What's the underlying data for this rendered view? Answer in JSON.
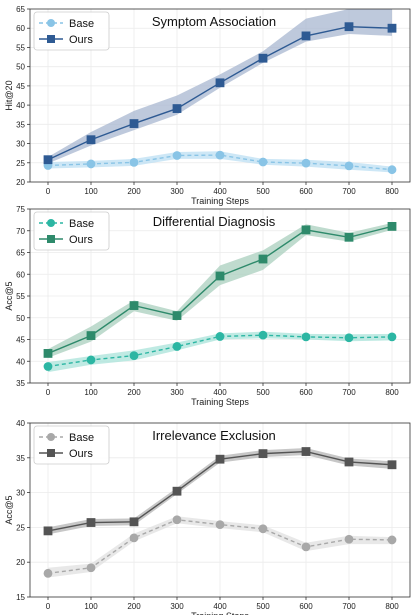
{
  "chart_data": [
    {
      "type": "line",
      "title": "Symptom Association",
      "xlabel": "Training Steps",
      "ylabel": "Hit@20",
      "x": [
        0,
        100,
        200,
        300,
        400,
        500,
        600,
        700,
        800
      ],
      "xticks": [
        "0",
        "100",
        "200",
        "300",
        "400",
        "500",
        "600",
        "700",
        "800"
      ],
      "ylim": [
        20,
        65
      ],
      "yticks": [
        "20",
        "25",
        "30",
        "35",
        "40",
        "45",
        "50",
        "55",
        "60",
        "65"
      ],
      "grid": true,
      "legend": "top-left",
      "series": [
        {
          "name": "Base",
          "marker": "circle",
          "dashed": true,
          "color": "#89c4e6",
          "band_color": "#bcdff3",
          "values": [
            24.3,
            24.7,
            25.1,
            26.9,
            27.0,
            25.2,
            24.9,
            24.2,
            23.2
          ],
          "lower": [
            23.5,
            23.8,
            24.2,
            26.0,
            26.0,
            24.5,
            24.0,
            23.2,
            22.5
          ],
          "upper": [
            25.2,
            25.5,
            26.0,
            27.8,
            28.0,
            26.0,
            25.8,
            25.2,
            24.0
          ]
        },
        {
          "name": "Ours",
          "marker": "square",
          "dashed": false,
          "color": "#2e5a93",
          "band_color": "#a8b7d0",
          "values": [
            25.8,
            31.0,
            35.2,
            39.1,
            45.8,
            52.2,
            58.0,
            60.4,
            60.0
          ],
          "lower": [
            24.8,
            29.5,
            33.5,
            37.5,
            44.5,
            51.0,
            56.5,
            58.5,
            58.0
          ],
          "upper": [
            26.5,
            33.0,
            38.5,
            42.5,
            48.0,
            54.0,
            62.5,
            65.0,
            65.0
          ]
        }
      ]
    },
    {
      "type": "line",
      "title": "Differential Diagnosis",
      "xlabel": "Training Steps",
      "ylabel": "Acc@5",
      "x": [
        0,
        100,
        200,
        300,
        400,
        500,
        600,
        700,
        800
      ],
      "xticks": [
        "0",
        "100",
        "200",
        "300",
        "400",
        "500",
        "600",
        "700",
        "800"
      ],
      "ylim": [
        35,
        75
      ],
      "yticks": [
        "35",
        "40",
        "45",
        "50",
        "55",
        "60",
        "65",
        "70",
        "75"
      ],
      "grid": true,
      "legend": "top-left",
      "series": [
        {
          "name": "Base",
          "marker": "circle",
          "dashed": true,
          "color": "#2cb6a3",
          "band_color": "#a9e3d9",
          "values": [
            38.8,
            40.3,
            41.3,
            43.4,
            45.7,
            46.0,
            45.6,
            45.4,
            45.6
          ],
          "lower": [
            37.5,
            39.2,
            40.2,
            42.5,
            45.0,
            45.3,
            45.0,
            44.6,
            44.8
          ],
          "upper": [
            39.8,
            41.2,
            42.5,
            44.3,
            46.4,
            46.8,
            46.3,
            46.2,
            46.3
          ]
        },
        {
          "name": "Ours",
          "marker": "square",
          "dashed": false,
          "color": "#2e8a6b",
          "band_color": "#a9cfbe",
          "values": [
            41.8,
            45.9,
            52.8,
            50.5,
            59.6,
            63.5,
            70.2,
            68.5,
            71.0
          ],
          "lower": [
            40.8,
            44.5,
            51.5,
            49.3,
            57.5,
            61.0,
            69.0,
            67.5,
            70.2
          ],
          "upper": [
            42.8,
            48.0,
            54.0,
            51.5,
            62.0,
            65.5,
            71.5,
            69.5,
            71.8
          ]
        }
      ]
    },
    {
      "type": "line",
      "title": "Irrelevance Exclusion",
      "xlabel": "Training Steps",
      "ylabel": "Acc@5",
      "x": [
        0,
        100,
        200,
        300,
        400,
        500,
        600,
        700,
        800
      ],
      "xticks": [
        "0",
        "100",
        "200",
        "300",
        "400",
        "500",
        "600",
        "700",
        "800"
      ],
      "ylim": [
        15,
        40
      ],
      "yticks": [
        "15",
        "20",
        "25",
        "30",
        "35",
        "40"
      ],
      "grid": true,
      "legend": "top-left",
      "series": [
        {
          "name": "Base",
          "marker": "circle",
          "dashed": true,
          "color": "#a8a8a8",
          "band_color": "#e0e0e0",
          "values": [
            18.4,
            19.2,
            23.5,
            26.1,
            25.4,
            24.8,
            22.2,
            23.3,
            23.2
          ],
          "lower": [
            17.8,
            18.6,
            23.0,
            25.6,
            24.9,
            24.3,
            21.6,
            22.6,
            22.6
          ],
          "upper": [
            19.2,
            19.8,
            24.1,
            26.6,
            25.9,
            25.3,
            22.8,
            23.8,
            23.6
          ]
        },
        {
          "name": "Ours",
          "marker": "square",
          "dashed": false,
          "color": "#545454",
          "band_color": "#b4b4b4",
          "values": [
            24.5,
            25.7,
            25.8,
            30.2,
            34.8,
            35.6,
            35.9,
            34.4,
            34.0
          ],
          "lower": [
            24.0,
            25.2,
            25.3,
            29.8,
            34.3,
            35.1,
            35.4,
            33.9,
            33.4
          ],
          "upper": [
            25.0,
            26.2,
            26.3,
            30.7,
            35.3,
            36.1,
            36.4,
            34.9,
            34.5
          ]
        }
      ]
    }
  ]
}
